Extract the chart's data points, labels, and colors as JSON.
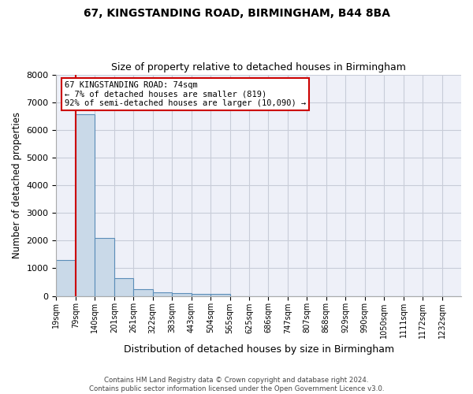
{
  "title1": "67, KINGSTANDING ROAD, BIRMINGHAM, B44 8BA",
  "title2": "Size of property relative to detached houses in Birmingham",
  "xlabel": "Distribution of detached houses by size in Birmingham",
  "ylabel": "Number of detached properties",
  "bar_labels": [
    "19sqm",
    "79sqm",
    "140sqm",
    "201sqm",
    "261sqm",
    "322sqm",
    "383sqm",
    "443sqm",
    "504sqm",
    "565sqm",
    "625sqm",
    "686sqm",
    "747sqm",
    "807sqm",
    "868sqm",
    "929sqm",
    "990sqm",
    "1050sqm",
    "1111sqm",
    "1172sqm",
    "1232sqm"
  ],
  "bar_heights": [
    1300,
    6550,
    2080,
    650,
    250,
    130,
    95,
    60,
    60,
    0,
    0,
    0,
    0,
    0,
    0,
    0,
    0,
    0,
    0,
    0,
    0
  ],
  "bar_color": "#c9d9e8",
  "bar_edge_color": "#5b8db8",
  "grid_color": "#c8ccd8",
  "background_color": "#eef0f8",
  "ylim": [
    0,
    8000
  ],
  "yticks": [
    0,
    1000,
    2000,
    3000,
    4000,
    5000,
    6000,
    7000,
    8000
  ],
  "annotation_text_line1": "67 KINGSTANDING ROAD: 74sqm",
  "annotation_text_line2": "← 7% of detached houses are smaller (819)",
  "annotation_text_line3": "92% of semi-detached houses are larger (10,090) →",
  "annotation_box_color": "#ffffff",
  "annotation_box_edge": "#cc0000",
  "vline_color": "#cc0000",
  "footer1": "Contains HM Land Registry data © Crown copyright and database right 2024.",
  "footer2": "Contains public sector information licensed under the Open Government Licence v3.0."
}
